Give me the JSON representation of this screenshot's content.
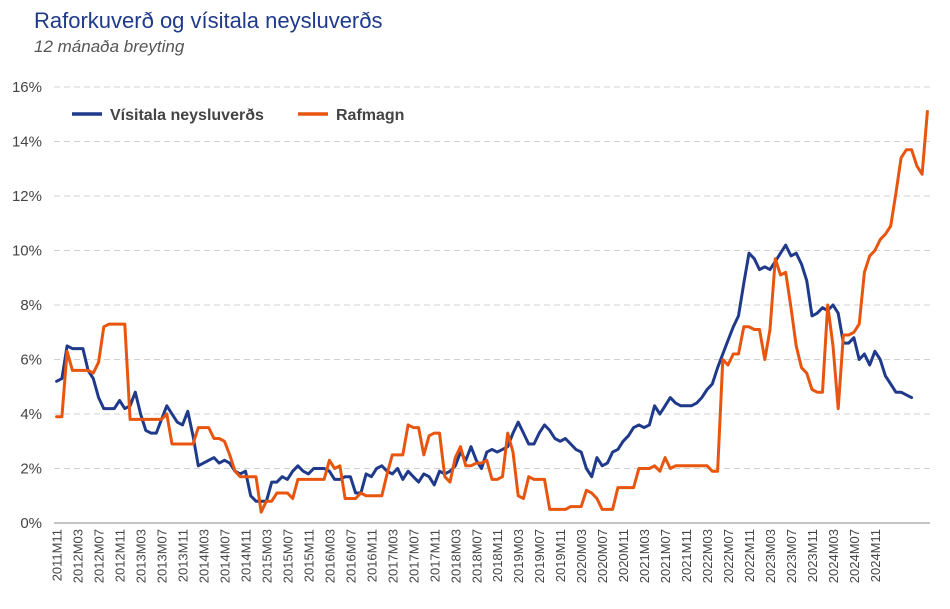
{
  "chart_data": {
    "type": "line",
    "title": "Raforkuverð og vísitala neysluverðs",
    "subtitle": "12 mánaða breyting",
    "xlabel": "",
    "ylabel": "",
    "ylim": [
      0,
      16
    ],
    "y_ticks": [
      "0%",
      "2%",
      "4%",
      "6%",
      "8%",
      "10%",
      "12%",
      "14%",
      "16%"
    ],
    "x_start": "2011M11",
    "x_end": "2025M01",
    "x_ticks": [
      "2011M11",
      "2012M03",
      "2012M07",
      "2012M11",
      "2013M03",
      "2013M07",
      "2013M11",
      "2014M03",
      "2014M07",
      "2014M11",
      "2015M03",
      "2015M07",
      "2015M11",
      "2016M03",
      "2016M07",
      "2016M11",
      "2017M03",
      "2017M07",
      "2017M11",
      "2018M03",
      "2018M07",
      "2018M11",
      "2019M03",
      "2019M07",
      "2019M11",
      "2020M03",
      "2020M07",
      "2020M11",
      "2021M03",
      "2021M07",
      "2021M11",
      "2022M03",
      "2022M07",
      "2022M11",
      "2023M03",
      "2023M07",
      "2023M11",
      "2024M03",
      "2024M07",
      "2024M11"
    ],
    "grid": true,
    "legend_position": "top-left",
    "series": [
      {
        "name": "Vísitala neysluverðs",
        "color": "#1f3a8a",
        "values": [
          5.2,
          5.3,
          6.5,
          6.4,
          6.4,
          6.4,
          5.6,
          5.3,
          4.6,
          4.2,
          4.2,
          4.2,
          4.5,
          4.2,
          4.3,
          4.8,
          4.0,
          3.4,
          3.3,
          3.3,
          3.8,
          4.3,
          4.0,
          3.7,
          3.6,
          4.1,
          3.2,
          2.1,
          2.2,
          2.3,
          2.4,
          2.2,
          2.3,
          2.2,
          1.9,
          1.8,
          1.9,
          1.0,
          0.8,
          0.8,
          0.8,
          1.5,
          1.5,
          1.7,
          1.6,
          1.9,
          2.1,
          1.9,
          1.8,
          2.0,
          2.0,
          2.0,
          1.9,
          1.6,
          1.6,
          1.7,
          1.7,
          1.1,
          1.1,
          1.8,
          1.7,
          2.0,
          2.1,
          1.9,
          1.8,
          2.0,
          1.6,
          1.9,
          1.7,
          1.5,
          1.8,
          1.7,
          1.4,
          1.9,
          1.8,
          1.9,
          2.1,
          2.6,
          2.3,
          2.8,
          2.3,
          2.0,
          2.6,
          2.7,
          2.6,
          2.7,
          2.8,
          3.3,
          3.7,
          3.3,
          2.9,
          2.9,
          3.3,
          3.6,
          3.4,
          3.1,
          3.0,
          3.1,
          2.9,
          2.7,
          2.6,
          2.0,
          1.7,
          2.4,
          2.1,
          2.2,
          2.6,
          2.7,
          3.0,
          3.2,
          3.5,
          3.6,
          3.5,
          3.6,
          4.3,
          4.0,
          4.3,
          4.6,
          4.4,
          4.3,
          4.3,
          4.3,
          4.4,
          4.6,
          4.9,
          5.1,
          5.7,
          6.2,
          6.7,
          7.2,
          7.6,
          8.8,
          9.9,
          9.7,
          9.3,
          9.4,
          9.3,
          9.6,
          9.9,
          10.2,
          9.8,
          9.9,
          9.5,
          8.9,
          7.6,
          7.7,
          7.9,
          7.8,
          8.0,
          7.7,
          6.6,
          6.6,
          6.8,
          6.0,
          6.2,
          5.8,
          6.3,
          6.0,
          5.4,
          5.1,
          4.8,
          4.8,
          4.7,
          4.6
        ]
      },
      {
        "name": "Rafmagn",
        "color": "#e8550f",
        "values": [
          3.9,
          3.9,
          6.3,
          5.6,
          5.6,
          5.6,
          5.6,
          5.5,
          5.9,
          7.2,
          7.3,
          7.3,
          7.3,
          7.3,
          3.8,
          3.8,
          3.8,
          3.8,
          3.8,
          3.8,
          3.8,
          4.0,
          2.9,
          2.9,
          2.9,
          2.9,
          2.9,
          3.5,
          3.5,
          3.5,
          3.1,
          3.1,
          3.0,
          2.5,
          1.9,
          1.7,
          1.7,
          1.7,
          1.7,
          0.4,
          0.8,
          0.8,
          1.1,
          1.1,
          1.1,
          0.9,
          1.6,
          1.6,
          1.6,
          1.6,
          1.6,
          1.6,
          2.3,
          2.0,
          2.1,
          0.9,
          0.9,
          0.9,
          1.1,
          1.0,
          1.0,
          1.0,
          1.0,
          1.8,
          2.5,
          2.5,
          2.5,
          3.6,
          3.5,
          3.5,
          2.5,
          3.2,
          3.3,
          3.3,
          1.7,
          1.5,
          2.4,
          2.8,
          2.1,
          2.1,
          2.2,
          2.2,
          2.3,
          1.6,
          1.6,
          1.7,
          3.3,
          2.6,
          1.0,
          0.9,
          1.7,
          1.6,
          1.6,
          1.6,
          0.5,
          0.5,
          0.5,
          0.5,
          0.6,
          0.6,
          0.6,
          1.2,
          1.1,
          0.9,
          0.5,
          0.5,
          0.5,
          1.3,
          1.3,
          1.3,
          1.3,
          2.0,
          2.0,
          2.0,
          2.1,
          1.9,
          2.4,
          2.0,
          2.1,
          2.1,
          2.1,
          2.1,
          2.1,
          2.1,
          2.1,
          1.9,
          1.9,
          6.0,
          5.8,
          6.2,
          6.2,
          7.2,
          7.2,
          7.1,
          7.1,
          6.0,
          7.1,
          9.7,
          9.1,
          9.2,
          7.9,
          6.5,
          5.7,
          5.5,
          4.9,
          4.8,
          4.8,
          8.0,
          6.5,
          4.2,
          6.9,
          6.9,
          7.0,
          7.3,
          9.2,
          9.8,
          10.0,
          10.4,
          10.6,
          10.9,
          12.1,
          13.4,
          13.7,
          13.7,
          13.1,
          12.8,
          15.1
        ]
      }
    ]
  }
}
